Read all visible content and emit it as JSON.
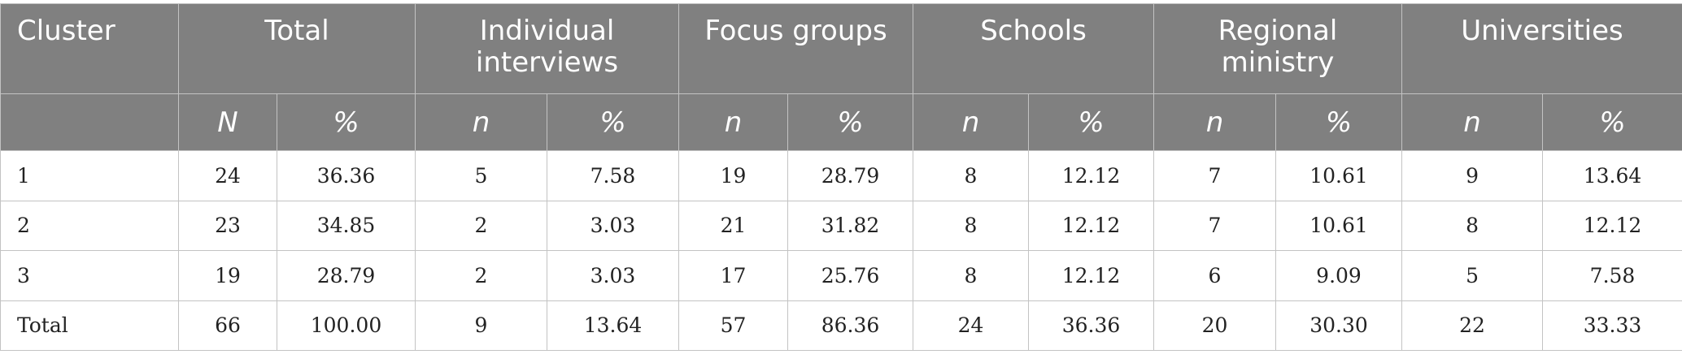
{
  "table": {
    "group_headers": [
      {
        "label": "Cluster",
        "span": 1
      },
      {
        "label": "Total",
        "span": 2
      },
      {
        "label": "Individual interviews",
        "span": 2
      },
      {
        "label": "Focus groups",
        "span": 2
      },
      {
        "label": "Schools",
        "span": 2
      },
      {
        "label": "Regional ministry",
        "span": 2
      },
      {
        "label": "Universities",
        "span": 2
      }
    ],
    "sub_headers": [
      "",
      "N",
      "%",
      "n",
      "%",
      "n",
      "%",
      "n",
      "%",
      "n",
      "%",
      "n",
      "%"
    ],
    "rows": [
      [
        "1",
        "24",
        "36.36",
        "5",
        "7.58",
        "19",
        "28.79",
        "8",
        "12.12",
        "7",
        "10.61",
        "9",
        "13.64"
      ],
      [
        "2",
        "23",
        "34.85",
        "2",
        "3.03",
        "21",
        "31.82",
        "8",
        "12.12",
        "7",
        "10.61",
        "8",
        "12.12"
      ],
      [
        "3",
        "19",
        "28.79",
        "2",
        "3.03",
        "17",
        "25.76",
        "8",
        "12.12",
        "6",
        "9.09",
        "5",
        "7.58"
      ],
      [
        "Total",
        "66",
        "100.00",
        "9",
        "13.64",
        "57",
        "86.36",
        "24",
        "36.36",
        "20",
        "30.30",
        "22",
        "33.33"
      ]
    ]
  }
}
